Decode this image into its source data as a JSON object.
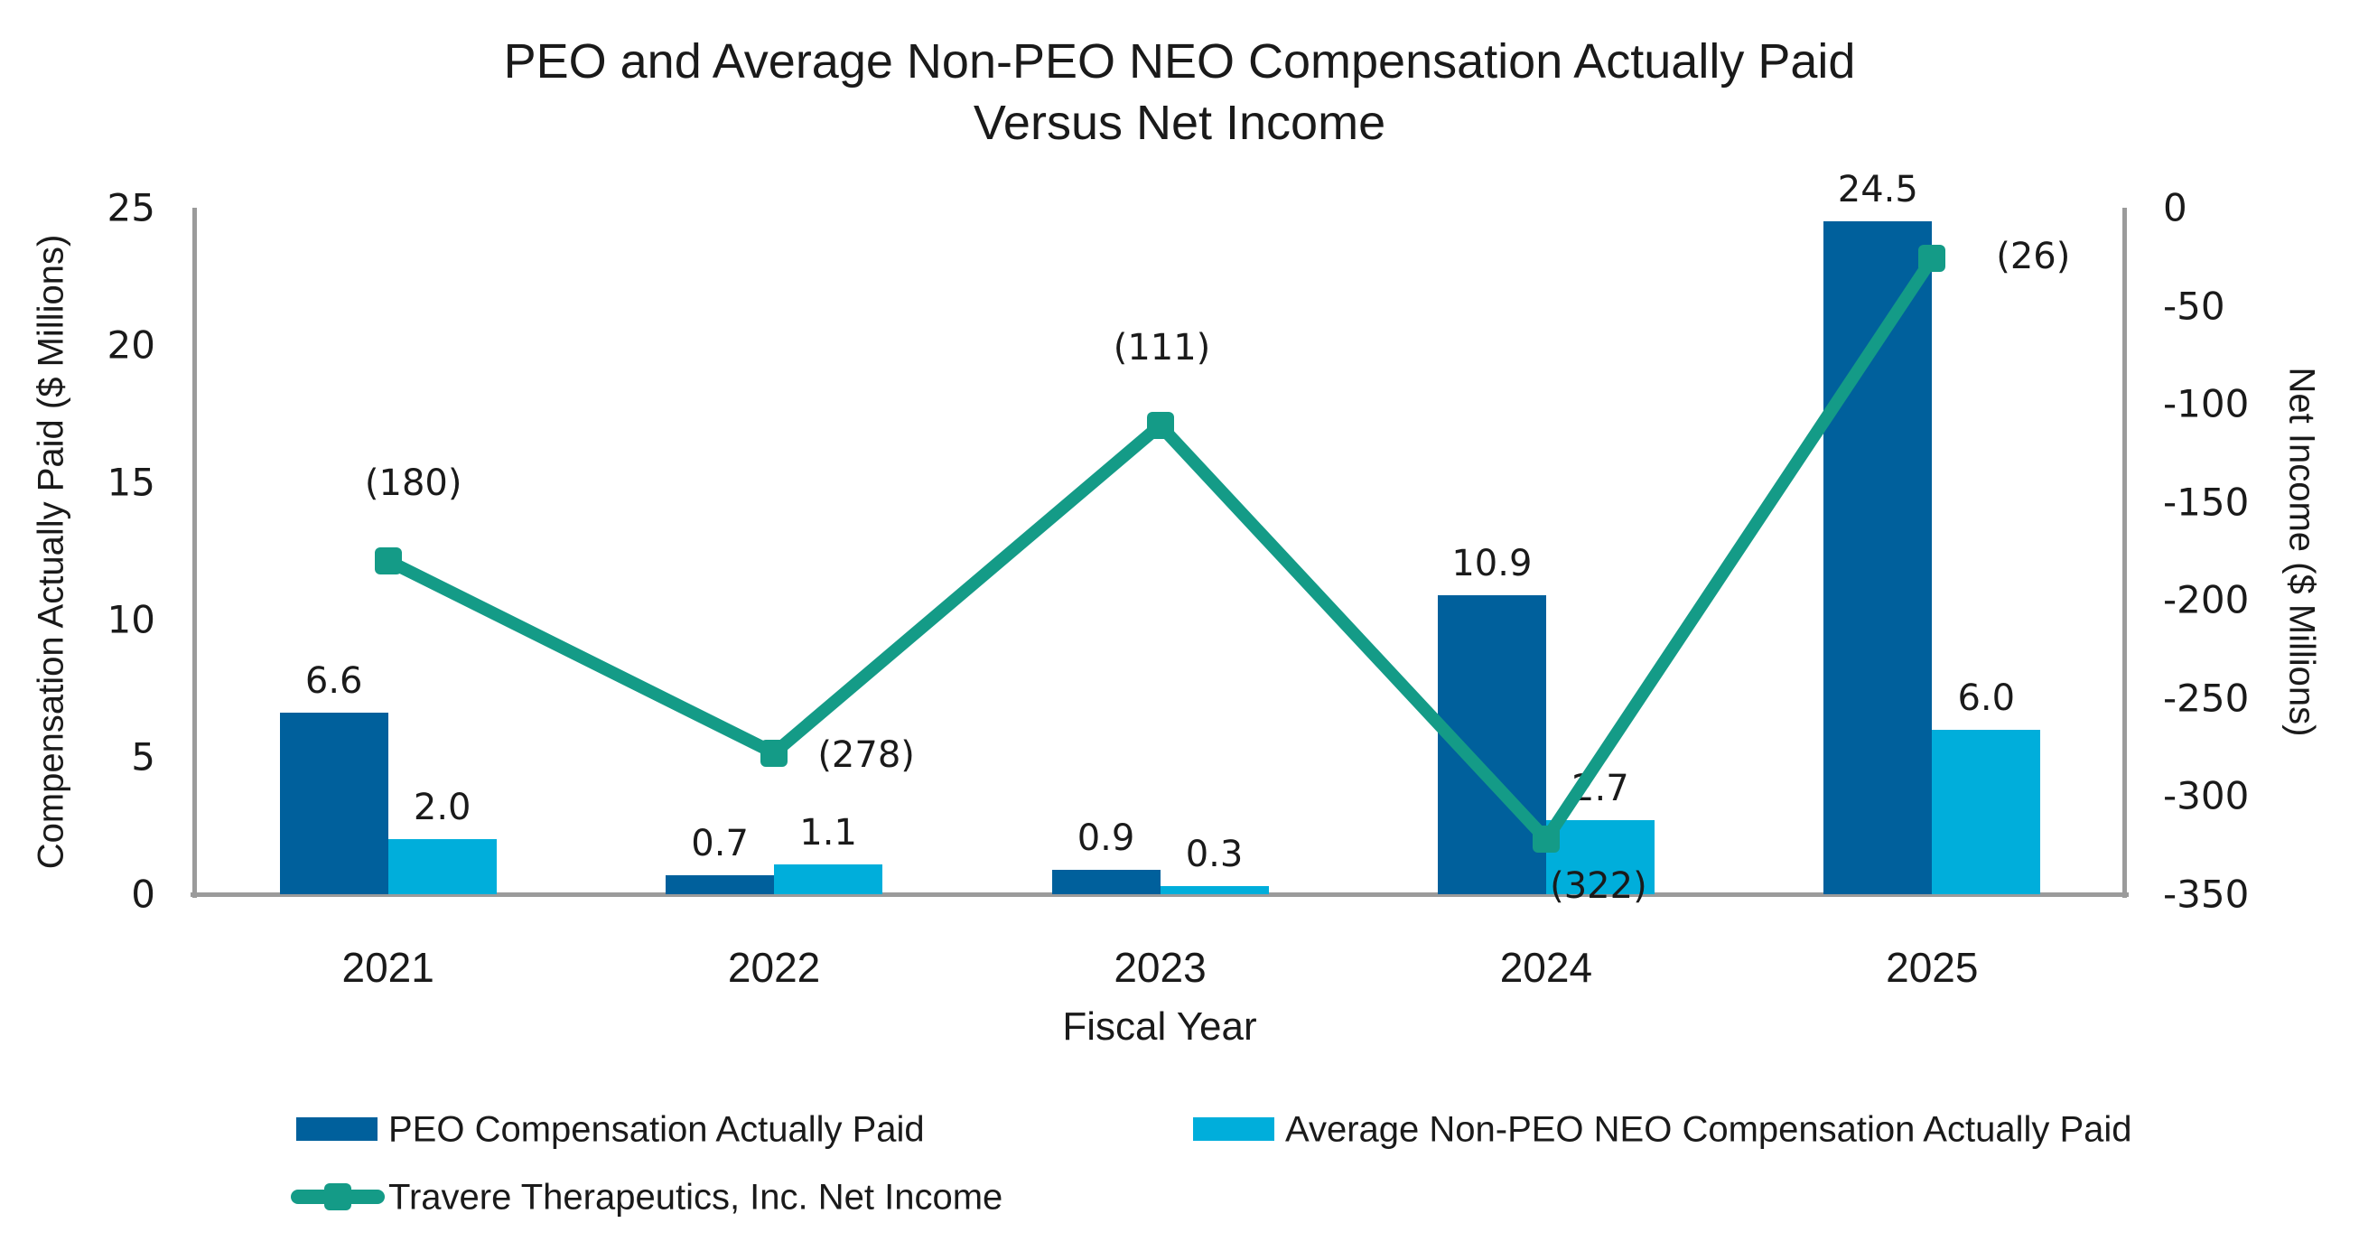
{
  "page": {
    "background": "#ffffff",
    "axis_color": "#9B9B9B",
    "text_color": "#1a1a1a"
  },
  "chart_data": {
    "type": "combo-bar-line",
    "title_line1": "PEO and Average Non-PEO NEO Compensation Actually Paid",
    "title_line2": "Versus Net Income",
    "xlabel": "Fiscal Year",
    "categories": [
      "2021",
      "2022",
      "2023",
      "2024",
      "2025"
    ],
    "left_axis": {
      "label": "Compensation Actually Paid ($ Millions)",
      "min": 0,
      "max": 25,
      "ticks": [
        0,
        5,
        10,
        15,
        20,
        25
      ]
    },
    "right_axis": {
      "label": "Net Income ($ Millions)",
      "min": -350,
      "max": 0,
      "ticks": [
        0,
        -50,
        -100,
        -150,
        -200,
        -250,
        -300,
        -350
      ]
    },
    "series": [
      {
        "name": "PEO Compensation Actually Paid",
        "type": "bar",
        "color": "#00609C",
        "values": [
          6.6,
          0.7,
          0.9,
          10.9,
          24.5
        ],
        "labels": [
          "6.6",
          "0.7",
          "0.9",
          "10.9",
          "24.5"
        ]
      },
      {
        "name": "Average Non-PEO NEO Compensation Actually Paid",
        "type": "bar",
        "color": "#00AEDB",
        "values": [
          2.0,
          1.1,
          0.3,
          2.7,
          6.0
        ],
        "labels": [
          "2.0",
          "1.1",
          "0.3",
          "2.7",
          "6.0"
        ]
      },
      {
        "name": "Travere Therapeutics, Inc. Net Income",
        "type": "line",
        "color": "#149B87",
        "values": [
          -180,
          -278,
          -111,
          -322,
          -26
        ],
        "labels": [
          "(180)",
          "(278)",
          "(111)",
          "(322)",
          "(26)"
        ]
      }
    ],
    "legend_position": "bottom",
    "grid": false
  }
}
